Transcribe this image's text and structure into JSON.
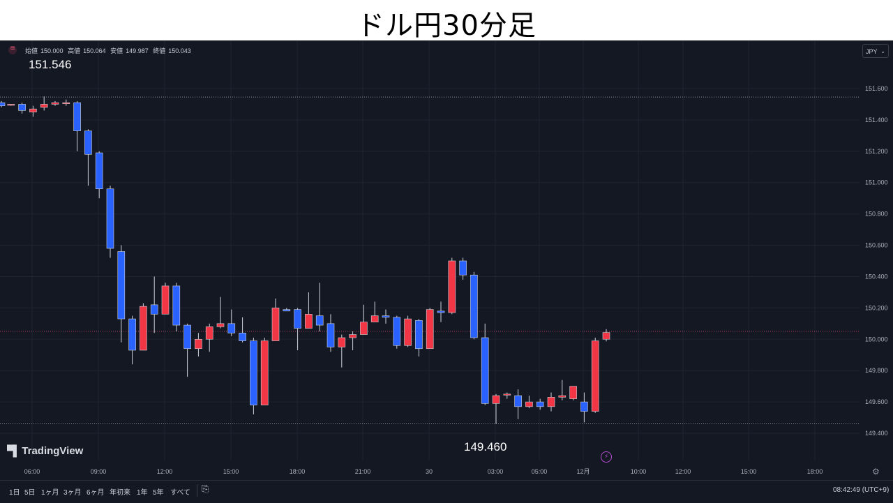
{
  "title": "ドル円30分足",
  "ohlc": {
    "open_label": "始値",
    "open": "150.000",
    "high_label": "高値",
    "high": "150.064",
    "low_label": "安値",
    "low": "149.987",
    "close_label": "終値",
    "close": "150.043"
  },
  "currency": "JPY",
  "annotations": {
    "high": "151.546",
    "low": "149.460"
  },
  "brand": "TradingView",
  "timeframes": [
    "1日",
    "5日",
    "1ヶ月",
    "3ヶ月",
    "6ヶ月",
    "年初来",
    "1年",
    "5年",
    "すべて"
  ],
  "clock": "08:42:49 (UTC+9)",
  "colors": {
    "up": "#f23645",
    "down": "#2962ff",
    "background": "#141823",
    "grid": "#1f2430",
    "dotted_line": "#8a8f9c",
    "current_price_line": "#b0405a"
  },
  "icons": {
    "symbol": "symbol-icon",
    "bolt": "bolt-icon",
    "settings": "gear-icon",
    "replay": "replay-icon",
    "dropdown": "chevron-down-icon"
  },
  "chart_data": {
    "type": "candlestick",
    "title": "ドル円30分足",
    "ylim": [
      149.36,
      151.68
    ],
    "y_ticks": [
      "151.600",
      "151.400",
      "151.200",
      "151.000",
      "150.800",
      "150.600",
      "150.400",
      "150.200",
      "150.000",
      "149.800",
      "149.600",
      "149.400"
    ],
    "x_ticks": [
      "06:00",
      "09:00",
      "12:00",
      "15:00",
      "18:00",
      "21:00",
      "30",
      "03:00",
      "05:00",
      "12月",
      "10:00",
      "12:00",
      "15:00",
      "18:00"
    ],
    "horizontal_lines": [
      151.546,
      149.46
    ],
    "current_price_line": 150.05,
    "candles": [
      {
        "o": 151.51,
        "h": 151.52,
        "l": 151.48,
        "c": 151.49
      },
      {
        "o": 151.5,
        "h": 151.5,
        "l": 151.49,
        "c": 151.5
      },
      {
        "o": 151.5,
        "h": 151.51,
        "l": 151.44,
        "c": 151.46
      },
      {
        "o": 151.45,
        "h": 151.49,
        "l": 151.42,
        "c": 151.47
      },
      {
        "o": 151.48,
        "h": 151.55,
        "l": 151.46,
        "c": 151.5
      },
      {
        "o": 151.5,
        "h": 151.52,
        "l": 151.49,
        "c": 151.51
      },
      {
        "o": 151.51,
        "h": 151.53,
        "l": 151.49,
        "c": 151.51
      },
      {
        "o": 151.51,
        "h": 151.52,
        "l": 151.2,
        "c": 151.33
      },
      {
        "o": 151.33,
        "h": 151.34,
        "l": 150.98,
        "c": 151.18
      },
      {
        "o": 151.19,
        "h": 151.2,
        "l": 150.9,
        "c": 150.96
      },
      {
        "o": 150.96,
        "h": 150.98,
        "l": 150.52,
        "c": 150.58
      },
      {
        "o": 150.56,
        "h": 150.6,
        "l": 149.98,
        "c": 150.13
      },
      {
        "o": 150.13,
        "h": 150.15,
        "l": 149.84,
        "c": 149.93
      },
      {
        "o": 149.93,
        "h": 150.23,
        "l": 149.93,
        "c": 150.21
      },
      {
        "o": 150.22,
        "h": 150.4,
        "l": 150.04,
        "c": 150.16
      },
      {
        "o": 150.16,
        "h": 150.36,
        "l": 150.16,
        "c": 150.34
      },
      {
        "o": 150.34,
        "h": 150.36,
        "l": 150.05,
        "c": 150.09
      },
      {
        "o": 150.09,
        "h": 150.1,
        "l": 149.76,
        "c": 149.94
      },
      {
        "o": 149.94,
        "h": 150.04,
        "l": 149.89,
        "c": 150.0
      },
      {
        "o": 150.0,
        "h": 150.1,
        "l": 149.92,
        "c": 150.08
      },
      {
        "o": 150.08,
        "h": 150.27,
        "l": 150.07,
        "c": 150.1
      },
      {
        "o": 150.1,
        "h": 150.19,
        "l": 150.02,
        "c": 150.04
      },
      {
        "o": 150.04,
        "h": 150.14,
        "l": 149.98,
        "c": 149.99
      },
      {
        "o": 149.99,
        "h": 150.01,
        "l": 149.52,
        "c": 149.58
      },
      {
        "o": 149.58,
        "h": 150.01,
        "l": 149.58,
        "c": 149.99
      },
      {
        "o": 149.99,
        "h": 150.26,
        "l": 149.99,
        "c": 150.2
      },
      {
        "o": 150.19,
        "h": 150.2,
        "l": 150.18,
        "c": 150.18
      },
      {
        "o": 150.19,
        "h": 150.2,
        "l": 149.93,
        "c": 150.07
      },
      {
        "o": 150.07,
        "h": 150.3,
        "l": 150.07,
        "c": 150.16
      },
      {
        "o": 150.15,
        "h": 150.36,
        "l": 150.05,
        "c": 150.09
      },
      {
        "o": 150.1,
        "h": 150.16,
        "l": 149.92,
        "c": 149.95
      },
      {
        "o": 149.95,
        "h": 150.03,
        "l": 149.82,
        "c": 150.01
      },
      {
        "o": 150.01,
        "h": 150.05,
        "l": 149.93,
        "c": 150.03
      },
      {
        "o": 150.03,
        "h": 150.22,
        "l": 150.03,
        "c": 150.11
      },
      {
        "o": 150.11,
        "h": 150.24,
        "l": 150.11,
        "c": 150.15
      },
      {
        "o": 150.15,
        "h": 150.19,
        "l": 150.1,
        "c": 150.14
      },
      {
        "o": 150.14,
        "h": 150.15,
        "l": 149.94,
        "c": 149.96
      },
      {
        "o": 149.96,
        "h": 150.15,
        "l": 149.95,
        "c": 150.13
      },
      {
        "o": 150.12,
        "h": 150.13,
        "l": 149.89,
        "c": 149.94
      },
      {
        "o": 149.94,
        "h": 150.2,
        "l": 149.94,
        "c": 150.19
      },
      {
        "o": 150.18,
        "h": 150.24,
        "l": 150.11,
        "c": 150.17
      },
      {
        "o": 150.17,
        "h": 150.52,
        "l": 150.16,
        "c": 150.5
      },
      {
        "o": 150.5,
        "h": 150.52,
        "l": 150.38,
        "c": 150.41
      },
      {
        "o": 150.41,
        "h": 150.43,
        "l": 150.0,
        "c": 150.01
      },
      {
        "o": 150.01,
        "h": 150.1,
        "l": 149.58,
        "c": 149.59
      },
      {
        "o": 149.59,
        "h": 149.65,
        "l": 149.46,
        "c": 149.64
      },
      {
        "o": 149.65,
        "h": 149.66,
        "l": 149.62,
        "c": 149.65
      },
      {
        "o": 149.64,
        "h": 149.68,
        "l": 149.49,
        "c": 149.57
      },
      {
        "o": 149.57,
        "h": 149.64,
        "l": 149.56,
        "c": 149.6
      },
      {
        "o": 149.6,
        "h": 149.62,
        "l": 149.55,
        "c": 149.57
      },
      {
        "o": 149.57,
        "h": 149.66,
        "l": 149.54,
        "c": 149.63
      },
      {
        "o": 149.63,
        "h": 149.74,
        "l": 149.61,
        "c": 149.64
      },
      {
        "o": 149.62,
        "h": 149.7,
        "l": 149.61,
        "c": 149.7
      },
      {
        "o": 149.6,
        "h": 149.66,
        "l": 149.47,
        "c": 149.54
      },
      {
        "o": 149.54,
        "h": 150.01,
        "l": 149.53,
        "c": 149.99
      },
      {
        "o": 150.0,
        "h": 150.064,
        "l": 149.987,
        "c": 150.043
      }
    ]
  }
}
